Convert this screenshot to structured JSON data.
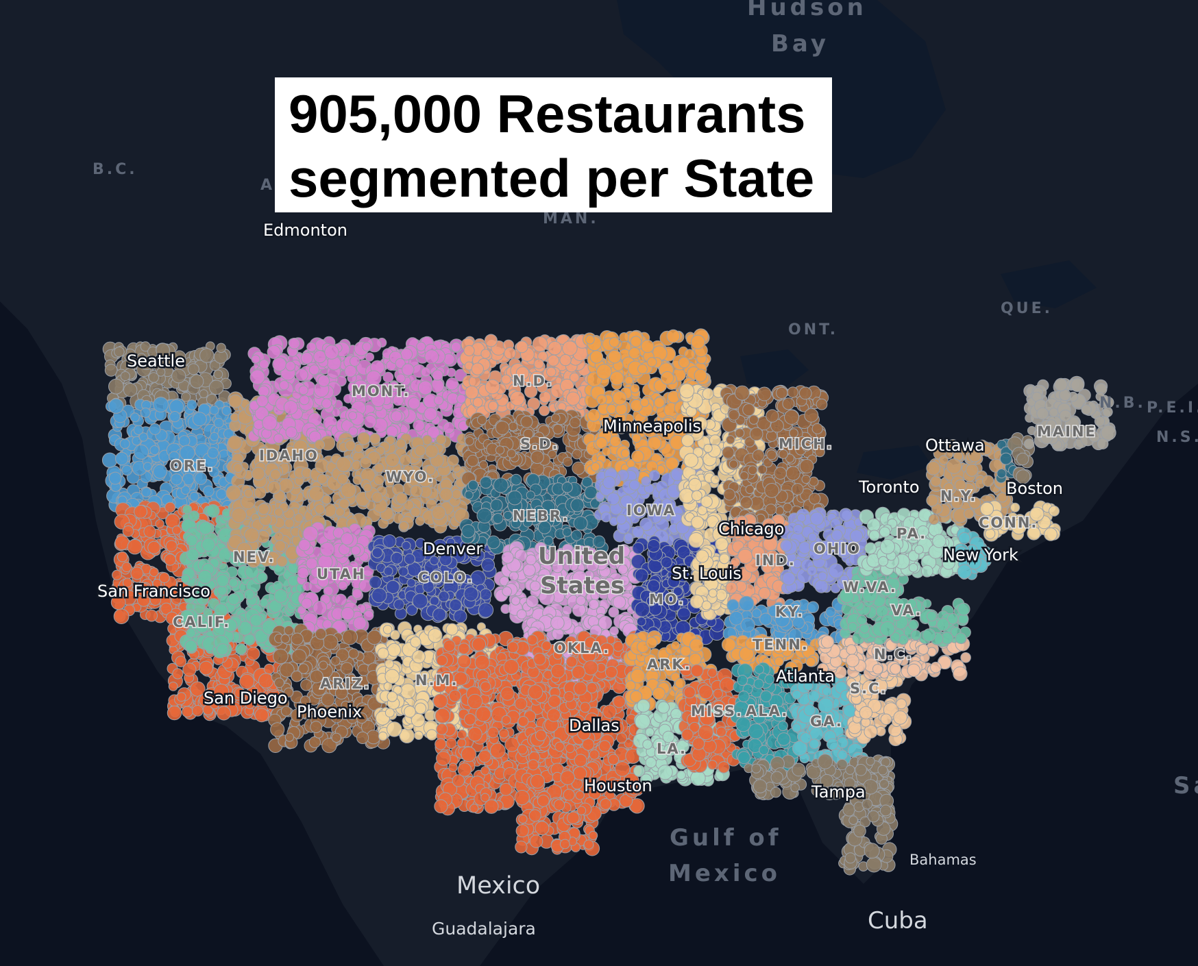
{
  "title": {
    "line1": "905,000 Restaurants",
    "line2": "segmented per State"
  },
  "colors": {
    "ocean": "#0c1220",
    "land": "#1a2230",
    "water": "#152a3d"
  },
  "region_labels": [
    {
      "name": "hudson-bay",
      "text": "Hudson"
    },
    {
      "name": "hudson-bay-2",
      "text": "Bay"
    },
    {
      "name": "bc",
      "text": "B.C."
    },
    {
      "name": "alberta",
      "text": "A"
    },
    {
      "name": "manitoba",
      "text": "MAN."
    },
    {
      "name": "ontario",
      "text": "ONT."
    },
    {
      "name": "quebec",
      "text": "QUE."
    },
    {
      "name": "new-brunswick",
      "text": "N.B."
    },
    {
      "name": "pei",
      "text": "P.E.I."
    },
    {
      "name": "nova-scotia",
      "text": "N.S."
    },
    {
      "name": "gulf-1",
      "text": "Gulf of"
    },
    {
      "name": "gulf-2",
      "text": "Mexico"
    },
    {
      "name": "sa",
      "text": "Sa"
    }
  ],
  "cities": [
    {
      "name": "edmonton",
      "text": "Edmonton"
    },
    {
      "name": "seattle",
      "text": "Seattle"
    },
    {
      "name": "minneapolis",
      "text": "Minneapolis"
    },
    {
      "name": "ottawa",
      "text": "Ottawa"
    },
    {
      "name": "toronto",
      "text": "Toronto"
    },
    {
      "name": "boston",
      "text": "Boston"
    },
    {
      "name": "chicago",
      "text": "Chicago"
    },
    {
      "name": "new-york",
      "text": "New York"
    },
    {
      "name": "denver",
      "text": "Denver"
    },
    {
      "name": "st-louis",
      "text": "St. Louis"
    },
    {
      "name": "san-francisco",
      "text": "San Francisco"
    },
    {
      "name": "atlanta",
      "text": "Atlanta"
    },
    {
      "name": "san-diego",
      "text": "San Diego"
    },
    {
      "name": "phoenix",
      "text": "Phoenix"
    },
    {
      "name": "dallas",
      "text": "Dallas"
    },
    {
      "name": "houston",
      "text": "Houston"
    },
    {
      "name": "tampa",
      "text": "Tampa"
    },
    {
      "name": "bahamas",
      "text": "Bahamas"
    },
    {
      "name": "guadalajara",
      "text": "Guadalajara"
    },
    {
      "name": "cuba",
      "text": "Cuba"
    }
  ],
  "countries": [
    {
      "name": "united-states-1",
      "text": "United"
    },
    {
      "name": "united-states-2",
      "text": "States"
    },
    {
      "name": "mexico",
      "text": "Mexico"
    }
  ],
  "states": [
    {
      "name": "wa",
      "color": "#8a7b67"
    },
    {
      "name": "or",
      "color": "#4f9bd0",
      "label": "ORE."
    },
    {
      "name": "ca",
      "color": "#e5683a",
      "label": "CALIF."
    },
    {
      "name": "nv",
      "color": "#6bc2a5",
      "label": "NEV."
    },
    {
      "name": "id",
      "color": "#c49a6c",
      "label": "IDAHO"
    },
    {
      "name": "mt",
      "color": "#d77fcf",
      "label": "MONT."
    },
    {
      "name": "wy",
      "color": "#c49a6c",
      "label": "WYO."
    },
    {
      "name": "ut",
      "color": "#d77fcf",
      "label": "UTAH"
    },
    {
      "name": "co",
      "color": "#3a4ba6",
      "label": "COLO."
    },
    {
      "name": "az",
      "color": "#9a6a45",
      "label": "ARIZ."
    },
    {
      "name": "nm",
      "color": "#f2d49c",
      "label": "N.M."
    },
    {
      "name": "nd",
      "color": "#f0a07a",
      "label": "N.D."
    },
    {
      "name": "sd",
      "color": "#9a6a45",
      "label": "S.D."
    },
    {
      "name": "ne",
      "color": "#2f6e86",
      "label": "NEBR."
    },
    {
      "name": "ks",
      "color": "#dc9fdc"
    },
    {
      "name": "ok",
      "color": "#dc9fdc",
      "label": "OKLA."
    },
    {
      "name": "tx",
      "color": "#e5683a"
    },
    {
      "name": "mn",
      "color": "#f0a04a"
    },
    {
      "name": "ia",
      "color": "#8f98e2",
      "label": "IOWA"
    },
    {
      "name": "mo",
      "color": "#2e3ea0",
      "label": "MO."
    },
    {
      "name": "ar",
      "color": "#f0a04a",
      "label": "ARK."
    },
    {
      "name": "la",
      "color": "#a7dcc7",
      "label": "LA."
    },
    {
      "name": "wi",
      "color": "#f2d49c"
    },
    {
      "name": "il",
      "color": "#f2d49c"
    },
    {
      "name": "mi",
      "color": "#9a6a45",
      "label": "MICH."
    },
    {
      "name": "in",
      "color": "#f0a07a",
      "label": "IND."
    },
    {
      "name": "oh",
      "color": "#8f98e2",
      "label": "OHIO"
    },
    {
      "name": "ky",
      "color": "#4f9bd0",
      "label": "KY."
    },
    {
      "name": "tn",
      "color": "#f0a04a",
      "label": "TENN."
    },
    {
      "name": "ms",
      "color": "#e5683a",
      "label": "MISS."
    },
    {
      "name": "al",
      "color": "#3aa0a8",
      "label": "ALA."
    },
    {
      "name": "ga",
      "color": "#5fc0cc",
      "label": "GA."
    },
    {
      "name": "fl",
      "color": "#8a7b67"
    },
    {
      "name": "sc",
      "color": "#f2c89c",
      "label": "S.C."
    },
    {
      "name": "nc",
      "color": "#f2c2a4",
      "label": "N.C."
    },
    {
      "name": "va",
      "color": "#6bc2a5",
      "label": "VA."
    },
    {
      "name": "wv",
      "color": "#6bc2a5",
      "label": "W.VA."
    },
    {
      "name": "pa",
      "color": "#a7dcc7",
      "label": "PA."
    },
    {
      "name": "ny",
      "color": "#c49a6c",
      "label": "N.Y."
    },
    {
      "name": "nj",
      "color": "#5fc0cc"
    },
    {
      "name": "ct",
      "color": "#f2d49c",
      "label": "CONN."
    },
    {
      "name": "vt",
      "color": "#2f6e86"
    },
    {
      "name": "nh",
      "color": "#8a7b67"
    },
    {
      "name": "me",
      "color": "#a9a49b",
      "label": "MAINE"
    }
  ]
}
